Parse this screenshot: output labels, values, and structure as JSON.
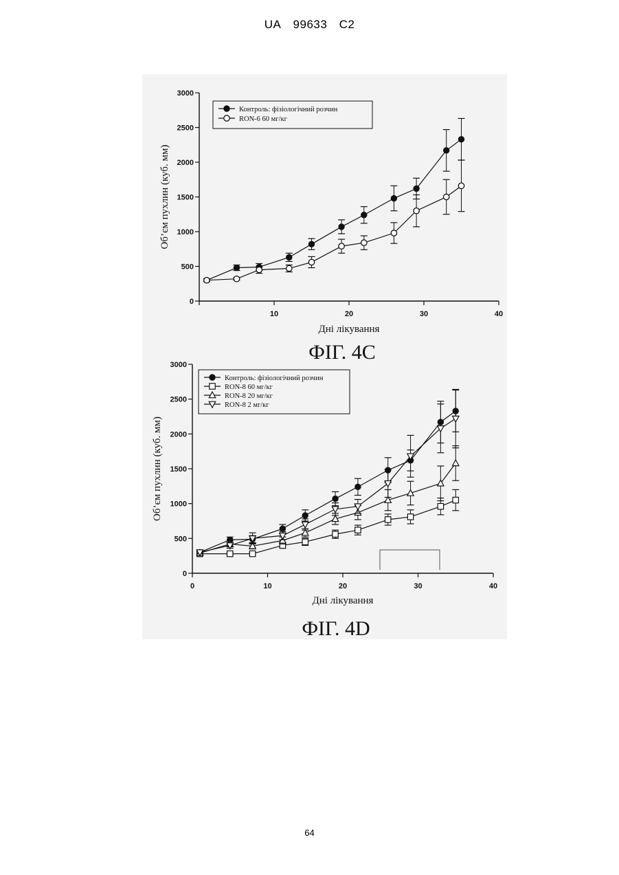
{
  "header": {
    "country": "UA",
    "number": "99633",
    "kind": "C2"
  },
  "footer": {
    "page_number": "64"
  },
  "colors": {
    "ink": "#111111",
    "paper_scan": "#f3f3f3"
  },
  "chart_data": [
    {
      "type": "line",
      "title": "ФІГ. 4С",
      "xlabel": "Дні лікування",
      "ylabel": "Об’єм пухлин (куб. мм)",
      "xlim": [
        0,
        40
      ],
      "ylim": [
        0,
        3000
      ],
      "xticks": [
        10,
        20,
        30,
        40
      ],
      "yticks": [
        0,
        500,
        1000,
        1500,
        2000,
        2500,
        3000
      ],
      "legend_position": "top-left",
      "series": [
        {
          "name": "Контроль: фізіологічний розчин",
          "marker": "filled-circle",
          "x": [
            1,
            5,
            8,
            12,
            15,
            19,
            22,
            26,
            29,
            33,
            35
          ],
          "y": [
            300,
            480,
            490,
            630,
            820,
            1070,
            1240,
            1480,
            1620,
            2170,
            2330
          ],
          "err": [
            20,
            40,
            50,
            60,
            80,
            100,
            120,
            180,
            150,
            300,
            300
          ]
        },
        {
          "name": "RON-6 60 мг/кг",
          "marker": "open-circle",
          "x": [
            1,
            5,
            8,
            12,
            15,
            19,
            22,
            26,
            29,
            33,
            35
          ],
          "y": [
            300,
            320,
            450,
            470,
            560,
            790,
            840,
            980,
            1300,
            1500,
            1660
          ],
          "err": [
            20,
            20,
            50,
            50,
            80,
            100,
            100,
            150,
            230,
            250,
            370
          ]
        }
      ]
    },
    {
      "type": "line",
      "title": "ФІГ. 4D",
      "xlabel": "Дні лікування",
      "ylabel": "Об’єм пухлин (куб. мм)",
      "xlim": [
        0,
        40
      ],
      "ylim": [
        0,
        3000
      ],
      "xticks": [
        0,
        10,
        20,
        30,
        40
      ],
      "yticks": [
        0,
        500,
        1000,
        1500,
        2000,
        2500,
        3000
      ],
      "legend_position": "top-left",
      "series": [
        {
          "name": "Контроль: фізіологічний розчин",
          "marker": "filled-circle",
          "x": [
            1,
            5,
            8,
            12,
            15,
            19,
            22,
            26,
            29,
            33,
            35
          ],
          "y": [
            300,
            480,
            490,
            640,
            830,
            1070,
            1240,
            1480,
            1620,
            2170,
            2330
          ],
          "err": [
            20,
            40,
            50,
            60,
            80,
            100,
            120,
            180,
            150,
            300,
            300
          ]
        },
        {
          "name": "RON-8 60 мг/кг",
          "marker": "open-square",
          "x": [
            1,
            5,
            8,
            12,
            15,
            19,
            22,
            26,
            29,
            33,
            35
          ],
          "y": [
            280,
            280,
            280,
            400,
            450,
            560,
            620,
            770,
            810,
            960,
            1050
          ],
          "err": [
            20,
            20,
            20,
            40,
            50,
            60,
            70,
            80,
            100,
            120,
            150
          ]
        },
        {
          "name": "RON-8 20 мг/кг",
          "marker": "open-triangle-up",
          "x": [
            1,
            5,
            8,
            12,
            15,
            19,
            22,
            26,
            29,
            33,
            35
          ],
          "y": [
            290,
            420,
            390,
            470,
            580,
            780,
            870,
            1050,
            1150,
            1290,
            1580
          ],
          "err": [
            20,
            40,
            40,
            50,
            60,
            80,
            100,
            150,
            170,
            250,
            250
          ]
        },
        {
          "name": "RON-8 2 мг/кг",
          "marker": "open-triangle-down",
          "x": [
            1,
            5,
            8,
            12,
            15,
            19,
            22,
            26,
            29,
            33,
            35
          ],
          "y": [
            300,
            400,
            500,
            540,
            700,
            920,
            960,
            1290,
            1680,
            2080,
            2220
          ],
          "err": [
            20,
            40,
            80,
            60,
            80,
            90,
            100,
            200,
            300,
            350,
            420
          ]
        }
      ]
    }
  ]
}
